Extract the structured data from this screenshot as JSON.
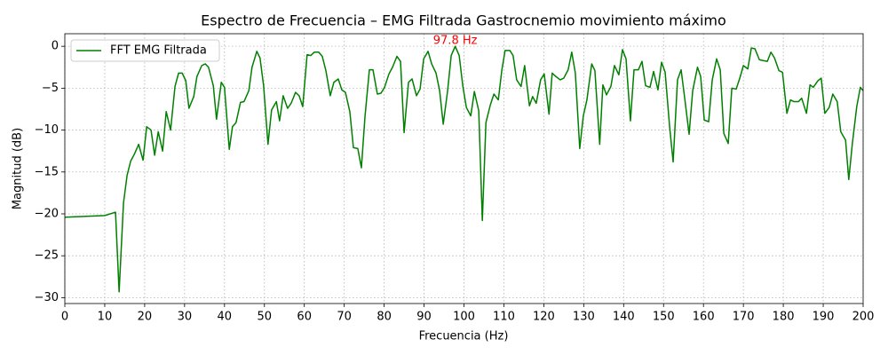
{
  "chart_data": {
    "type": "line",
    "title": "Espectro de Frecuencia – EMG Filtrada Gastrocnemio movimiento máximo",
    "x_label": "Frecuencia (Hz)",
    "y_label": "Magnitud (dB)",
    "xlim": [
      0,
      200
    ],
    "ylim": [
      -30.7,
      1.5
    ],
    "xticks": [
      0,
      10,
      20,
      30,
      40,
      50,
      60,
      70,
      80,
      90,
      100,
      110,
      120,
      130,
      140,
      150,
      160,
      170,
      180,
      190,
      200
    ],
    "yticks": [
      0,
      {
        "value": -5,
        "label": "−5"
      },
      {
        "value": -10,
        "label": "−10"
      },
      {
        "value": -15,
        "label": "−15"
      },
      {
        "value": -20,
        "label": "−20"
      },
      {
        "value": -25,
        "label": "−25"
      },
      {
        "value": -30,
        "label": "−30"
      }
    ],
    "grid": true,
    "legend": "upper left",
    "x": [
      0,
      10,
      12.7,
      13.6,
      14.7,
      15.6,
      16.5,
      17.4,
      18.5,
      19.6,
      20.5,
      21.6,
      22.5,
      23.4,
      24.5,
      25.4,
      26.5,
      27.6,
      28.5,
      29.4,
      30.3,
      31.1,
      32.3,
      33.1,
      34.3,
      35.2,
      36.0,
      37.2,
      38.0,
      39.2,
      40.0,
      41.2,
      42.0,
      42.9,
      44.0,
      44.9,
      46.1,
      46.9,
      48.1,
      48.9,
      49.8,
      50.9,
      51.8,
      53.0,
      53.8,
      54.7,
      55.8,
      56.7,
      57.8,
      58.7,
      59.6,
      60.7,
      61.6,
      62.5,
      63.6,
      64.5,
      65.4,
      66.5,
      67.4,
      68.5,
      69.4,
      70.3,
      71.4,
      72.3,
      73.4,
      74.3,
      75.2,
      76.3,
      77.2,
      78.3,
      79.2,
      80.1,
      81.2,
      82.1,
      83.2,
      84.1,
      85.0,
      86.1,
      87.0,
      88.1,
      89.0,
      89.9,
      91.0,
      91.9,
      93.0,
      93.9,
      94.8,
      95.9,
      96.8,
      97.8,
      98.8,
      99.7,
      100.6,
      101.7,
      102.6,
      103.7,
      104.6,
      105.5,
      106.6,
      107.5,
      108.6,
      109.5,
      110.3,
      111.5,
      112.3,
      113.2,
      114.3,
      115.2,
      116.4,
      117.2,
      118.1,
      119.2,
      120.1,
      121.3,
      122.1,
      123.0,
      124.1,
      125.0,
      126.1,
      127.0,
      127.9,
      129.0,
      129.9,
      130.8,
      132.0,
      132.8,
      134.0,
      134.8,
      135.7,
      136.8,
      137.7,
      138.8,
      139.7,
      140.6,
      141.7,
      142.6,
      143.7,
      144.6,
      145.5,
      146.6,
      147.5,
      148.6,
      149.5,
      150.4,
      151.5,
      152.4,
      153.5,
      154.4,
      155.3,
      156.4,
      157.3,
      158.5,
      159.3,
      160.2,
      161.3,
      162.2,
      163.3,
      164.2,
      165.1,
      166.2,
      167.1,
      168.2,
      169.1,
      170.0,
      171.1,
      172.0,
      172.9,
      174.0,
      174.9,
      176.0,
      176.9,
      177.8,
      178.9,
      179.8,
      180.9,
      181.8,
      182.6,
      183.8,
      184.6,
      185.8,
      186.7,
      187.5,
      188.7,
      189.5,
      190.4,
      191.5,
      192.4,
      193.5,
      194.4,
      195.6,
      196.4,
      197.3,
      198.4,
      199.3,
      200
    ],
    "series": [
      {
        "name": "FFT EMG Filtrada",
        "color": "#008000",
        "values": [
          -20.4,
          -20.2,
          -19.8,
          -29.3,
          -18.7,
          -15.4,
          -13.7,
          -12.9,
          -11.7,
          -13.6,
          -9.6,
          -10.0,
          -13.0,
          -10.2,
          -12.5,
          -7.8,
          -10.0,
          -4.8,
          -3.2,
          -3.2,
          -4.1,
          -7.4,
          -6.0,
          -3.6,
          -2.3,
          -2.1,
          -2.5,
          -4.7,
          -8.7,
          -4.3,
          -4.9,
          -12.3,
          -9.6,
          -9.1,
          -6.7,
          -6.6,
          -5.3,
          -2.5,
          -0.6,
          -1.4,
          -4.7,
          -11.7,
          -7.6,
          -6.6,
          -8.9,
          -5.9,
          -7.4,
          -6.8,
          -5.5,
          -5.9,
          -7.2,
          -1.0,
          -1.1,
          -0.7,
          -0.7,
          -1.2,
          -2.9,
          -5.9,
          -4.3,
          -3.9,
          -5.2,
          -5.5,
          -7.8,
          -12.1,
          -12.2,
          -14.5,
          -8.4,
          -2.8,
          -2.8,
          -5.7,
          -5.6,
          -4.9,
          -3.3,
          -2.5,
          -1.2,
          -1.8,
          -10.3,
          -4.3,
          -3.9,
          -5.9,
          -5.1,
          -1.5,
          -0.6,
          -2.1,
          -3.2,
          -5.3,
          -9.3,
          -5.3,
          -1.1,
          0,
          -1.1,
          -4.7,
          -7.3,
          -8.3,
          -5.4,
          -7.7,
          -20.8,
          -9.1,
          -7.0,
          -5.7,
          -6.4,
          -2.8,
          -0.5,
          -0.5,
          -1.1,
          -4.0,
          -4.8,
          -2.3,
          -7.1,
          -6.0,
          -6.8,
          -4.0,
          -3.3,
          -8.1,
          -3.2,
          -3.6,
          -4.0,
          -3.8,
          -2.8,
          -0.7,
          -3.2,
          -12.2,
          -8.3,
          -6.4,
          -2.1,
          -2.9,
          -11.7,
          -4.6,
          -5.8,
          -4.8,
          -2.3,
          -3.4,
          -0.4,
          -1.5,
          -8.9,
          -2.8,
          -2.8,
          -1.8,
          -4.7,
          -4.9,
          -3.0,
          -5.2,
          -1.9,
          -3.1,
          -9.5,
          -13.8,
          -4.0,
          -2.8,
          -6.2,
          -10.5,
          -5.3,
          -2.5,
          -3.6,
          -8.8,
          -9.0,
          -4.0,
          -1.5,
          -2.8,
          -10.4,
          -11.6,
          -5.0,
          -5.1,
          -3.8,
          -2.3,
          -2.7,
          -0.2,
          -0.3,
          -1.6,
          -1.7,
          -1.8,
          -0.7,
          -1.4,
          -2.9,
          -3.1,
          -8.0,
          -6.4,
          -6.6,
          -6.6,
          -6.2,
          -8.0,
          -4.6,
          -4.9,
          -4.1,
          -3.8,
          -8.0,
          -7.3,
          -5.7,
          -6.6,
          -10.2,
          -11.2,
          -15.9,
          -11.6,
          -7.2,
          -4.9,
          -5.3
        ]
      }
    ],
    "annotations": [
      {
        "text": "97.8 Hz",
        "x": 97.8,
        "y": 0,
        "color": "#ff0000"
      }
    ]
  }
}
